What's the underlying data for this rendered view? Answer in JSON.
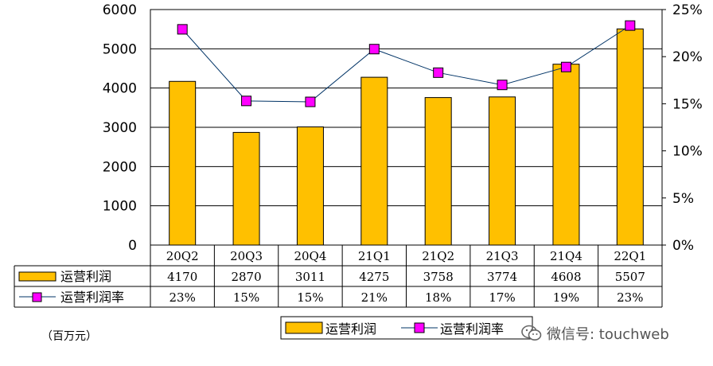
{
  "chart_data": {
    "type": "bar",
    "categories": [
      "20Q2",
      "20Q3",
      "20Q4",
      "21Q1",
      "21Q2",
      "21Q3",
      "21Q4",
      "22Q1"
    ],
    "series": [
      {
        "name": "运营利润",
        "type": "bar",
        "axis": "left",
        "color": "#FFC000",
        "values": [
          4170,
          2870,
          3011,
          4275,
          3758,
          3774,
          4608,
          5507
        ]
      },
      {
        "name": "运营利润率",
        "type": "line",
        "axis": "right",
        "color": "#003366",
        "marker_color": "#FF00FF",
        "values": [
          22.9,
          15.3,
          15.2,
          20.8,
          18.3,
          17.0,
          18.9,
          23.3
        ]
      }
    ],
    "y_left": {
      "min": 0,
      "max": 6000,
      "ticks": [
        "0",
        "1000",
        "2000",
        "3000",
        "4000",
        "5000",
        "6000"
      ]
    },
    "y_right": {
      "min": 0,
      "max": 25,
      "ticks": [
        "0%",
        "5%",
        "10%",
        "15%",
        "20%",
        "25%"
      ]
    },
    "grid": true,
    "legend_position": "bottom",
    "table": {
      "rows": [
        {
          "label": "运营利润",
          "cells": [
            "4170",
            "2870",
            "3011",
            "4275",
            "3758",
            "3774",
            "4608",
            "5507"
          ]
        },
        {
          "label": "运营利润率",
          "cells": [
            "23%",
            "15%",
            "15%",
            "21%",
            "18%",
            "17%",
            "19%",
            "23%"
          ]
        }
      ]
    },
    "unit_note": "（百万元）"
  },
  "watermark": {
    "text": "微信号: touchweb",
    "icon": "wechat-icon"
  }
}
